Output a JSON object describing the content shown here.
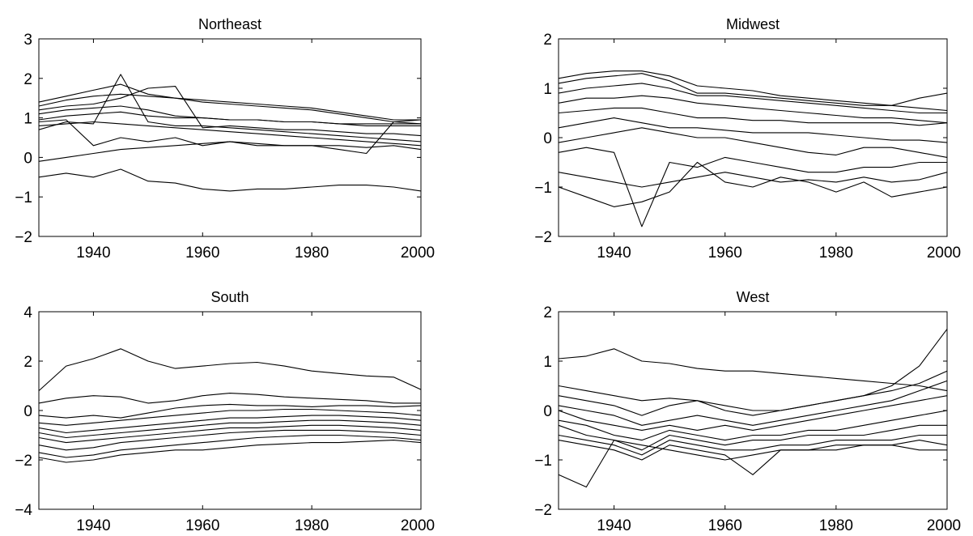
{
  "chart_data": [
    {
      "type": "line",
      "title": "Northeast",
      "xlim": [
        1930,
        2000
      ],
      "ylim": [
        -2,
        3
      ],
      "xticks": [
        1940,
        1960,
        1980,
        2000
      ],
      "yticks": [
        -2,
        -1,
        0,
        1,
        2,
        3
      ],
      "xtick_labels": [
        "1940",
        "1960",
        "1980",
        "2000"
      ],
      "ytick_labels": [
        "−2",
        "−1",
        "0",
        "1",
        "2",
        "3"
      ],
      "x": [
        1930,
        1935,
        1940,
        1945,
        1950,
        1955,
        1960,
        1965,
        1970,
        1975,
        1980,
        1985,
        1990,
        1995,
        2000
      ],
      "series": [
        {
          "values": [
            1.4,
            1.55,
            1.7,
            1.85,
            1.6,
            1.5,
            1.45,
            1.4,
            1.35,
            1.3,
            1.25,
            1.15,
            1.05,
            0.95,
            0.95
          ]
        },
        {
          "values": [
            1.3,
            1.45,
            1.55,
            1.6,
            1.55,
            1.5,
            1.4,
            1.35,
            1.3,
            1.25,
            1.2,
            1.1,
            1.0,
            0.9,
            0.85
          ]
        },
        {
          "values": [
            1.2,
            1.3,
            1.35,
            1.5,
            1.75,
            1.8,
            0.75,
            0.8,
            0.75,
            0.7,
            0.7,
            0.65,
            0.6,
            0.6,
            0.55
          ]
        },
        {
          "values": [
            1.1,
            1.2,
            1.25,
            1.3,
            1.2,
            1.05,
            1.0,
            0.95,
            0.95,
            0.9,
            0.9,
            0.85,
            0.85,
            0.85,
            0.85
          ]
        },
        {
          "values": [
            0.95,
            1.05,
            1.1,
            1.15,
            1.05,
            1.0,
            1.0,
            0.95,
            0.95,
            0.9,
            0.9,
            0.85,
            0.8,
            0.8,
            0.8
          ]
        },
        {
          "values": [
            0.7,
            0.9,
            0.85,
            2.1,
            0.9,
            0.8,
            0.8,
            0.75,
            0.7,
            0.65,
            0.6,
            0.55,
            0.5,
            0.45,
            0.4
          ]
        },
        {
          "values": [
            0.8,
            0.85,
            0.9,
            0.85,
            0.8,
            0.75,
            0.7,
            0.65,
            0.6,
            0.55,
            0.5,
            0.45,
            0.4,
            0.35,
            0.3
          ]
        },
        {
          "values": [
            0.9,
            0.95,
            0.3,
            0.5,
            0.4,
            0.5,
            0.3,
            0.4,
            0.3,
            0.3,
            0.3,
            0.2,
            0.1,
            0.9,
            0.95
          ]
        },
        {
          "values": [
            -0.1,
            0.0,
            0.1,
            0.2,
            0.25,
            0.3,
            0.35,
            0.4,
            0.35,
            0.3,
            0.3,
            0.3,
            0.25,
            0.3,
            0.2
          ]
        },
        {
          "values": [
            -0.5,
            -0.4,
            -0.5,
            -0.3,
            -0.6,
            -0.65,
            -0.8,
            -0.85,
            -0.8,
            -0.8,
            -0.75,
            -0.7,
            -0.7,
            -0.75,
            -0.85
          ]
        }
      ]
    },
    {
      "type": "line",
      "title": "Midwest",
      "xlim": [
        1930,
        2000
      ],
      "ylim": [
        -2,
        2
      ],
      "xticks": [
        1940,
        1960,
        1980,
        2000
      ],
      "yticks": [
        -2,
        -1,
        0,
        1,
        2
      ],
      "xtick_labels": [
        "1940",
        "1960",
        "1980",
        "2000"
      ],
      "ytick_labels": [
        "−2",
        "−1",
        "0",
        "1",
        "2"
      ],
      "x": [
        1930,
        1935,
        1940,
        1945,
        1950,
        1955,
        1960,
        1965,
        1970,
        1975,
        1980,
        1985,
        1990,
        1995,
        2000
      ],
      "series": [
        {
          "values": [
            1.2,
            1.3,
            1.35,
            1.35,
            1.25,
            1.05,
            1.0,
            0.95,
            0.85,
            0.8,
            0.75,
            0.7,
            0.65,
            0.6,
            0.55
          ]
        },
        {
          "values": [
            1.1,
            1.2,
            1.25,
            1.3,
            1.15,
            0.9,
            0.9,
            0.85,
            0.8,
            0.75,
            0.7,
            0.65,
            0.65,
            0.8,
            0.9
          ]
        },
        {
          "values": [
            0.9,
            1.0,
            1.05,
            1.1,
            1.0,
            0.85,
            0.85,
            0.8,
            0.75,
            0.7,
            0.65,
            0.6,
            0.55,
            0.5,
            0.5
          ]
        },
        {
          "values": [
            0.7,
            0.8,
            0.8,
            0.85,
            0.8,
            0.7,
            0.65,
            0.6,
            0.55,
            0.5,
            0.45,
            0.4,
            0.4,
            0.35,
            0.3
          ]
        },
        {
          "values": [
            0.5,
            0.55,
            0.6,
            0.6,
            0.5,
            0.4,
            0.4,
            0.35,
            0.35,
            0.3,
            0.3,
            0.3,
            0.3,
            0.25,
            0.3
          ]
        },
        {
          "values": [
            0.2,
            0.3,
            0.4,
            0.3,
            0.2,
            0.2,
            0.15,
            0.1,
            0.1,
            0.1,
            0.05,
            0.0,
            -0.05,
            -0.05,
            -0.1
          ]
        },
        {
          "values": [
            -0.1,
            0.0,
            0.1,
            0.2,
            0.1,
            0.0,
            0.0,
            -0.1,
            -0.2,
            -0.3,
            -0.35,
            -0.2,
            -0.2,
            -0.3,
            -0.4
          ]
        },
        {
          "values": [
            -0.3,
            -0.2,
            -0.3,
            -1.8,
            -0.5,
            -0.6,
            -0.4,
            -0.5,
            -0.6,
            -0.7,
            -0.7,
            -0.6,
            -0.6,
            -0.5,
            -0.5
          ]
        },
        {
          "values": [
            -0.7,
            -0.8,
            -0.9,
            -1.0,
            -0.9,
            -0.8,
            -0.7,
            -0.8,
            -0.9,
            -0.85,
            -0.9,
            -0.8,
            -0.9,
            -0.85,
            -0.7
          ]
        },
        {
          "values": [
            -1.0,
            -1.2,
            -1.4,
            -1.3,
            -1.1,
            -0.5,
            -0.9,
            -1.0,
            -0.8,
            -0.9,
            -1.1,
            -0.9,
            -1.2,
            -1.1,
            -1.0
          ]
        }
      ]
    },
    {
      "type": "line",
      "title": "South",
      "xlim": [
        1930,
        2000
      ],
      "ylim": [
        -4,
        4
      ],
      "xticks": [
        1940,
        1960,
        1980,
        2000
      ],
      "yticks": [
        -4,
        -2,
        0,
        2,
        4
      ],
      "xtick_labels": [
        "1940",
        "1960",
        "1980",
        "2000"
      ],
      "ytick_labels": [
        "−4",
        "−2",
        "0",
        "2",
        "4"
      ],
      "x": [
        1930,
        1935,
        1940,
        1945,
        1950,
        1955,
        1960,
        1965,
        1970,
        1975,
        1980,
        1985,
        1990,
        1995,
        2000
      ],
      "series": [
        {
          "values": [
            0.8,
            1.8,
            2.1,
            2.5,
            2.0,
            1.7,
            1.8,
            1.9,
            1.95,
            1.8,
            1.6,
            1.5,
            1.4,
            1.35,
            0.85
          ]
        },
        {
          "values": [
            0.3,
            0.5,
            0.6,
            0.55,
            0.3,
            0.4,
            0.6,
            0.7,
            0.65,
            0.55,
            0.5,
            0.45,
            0.4,
            0.3,
            0.3
          ]
        },
        {
          "values": [
            -0.2,
            -0.3,
            -0.2,
            -0.3,
            -0.1,
            0.1,
            0.2,
            0.25,
            0.2,
            0.2,
            0.15,
            0.2,
            0.2,
            0.15,
            0.2
          ]
        },
        {
          "values": [
            -0.5,
            -0.6,
            -0.5,
            -0.4,
            -0.3,
            -0.2,
            -0.1,
            0.0,
            0.0,
            0.05,
            0.05,
            0.0,
            -0.05,
            -0.1,
            -0.2
          ]
        },
        {
          "values": [
            -0.7,
            -0.9,
            -0.8,
            -0.7,
            -0.6,
            -0.5,
            -0.4,
            -0.3,
            -0.3,
            -0.25,
            -0.2,
            -0.2,
            -0.25,
            -0.3,
            -0.4
          ]
        },
        {
          "values": [
            -0.9,
            -1.1,
            -1.0,
            -0.9,
            -0.8,
            -0.7,
            -0.6,
            -0.5,
            -0.5,
            -0.45,
            -0.4,
            -0.4,
            -0.45,
            -0.5,
            -0.6
          ]
        },
        {
          "values": [
            -1.1,
            -1.3,
            -1.2,
            -1.1,
            -1.0,
            -0.9,
            -0.8,
            -0.7,
            -0.7,
            -0.65,
            -0.6,
            -0.6,
            -0.65,
            -0.7,
            -0.8
          ]
        },
        {
          "values": [
            -1.4,
            -1.6,
            -1.5,
            -1.3,
            -1.2,
            -1.1,
            -1.0,
            -0.9,
            -0.85,
            -0.8,
            -0.8,
            -0.8,
            -0.85,
            -0.9,
            -1.0
          ]
        },
        {
          "values": [
            -1.7,
            -1.9,
            -1.8,
            -1.6,
            -1.5,
            -1.4,
            -1.3,
            -1.2,
            -1.1,
            -1.05,
            -1.0,
            -1.0,
            -1.05,
            -1.1,
            -1.2
          ]
        },
        {
          "values": [
            -1.9,
            -2.1,
            -2.0,
            -1.8,
            -1.7,
            -1.6,
            -1.6,
            -1.5,
            -1.4,
            -1.35,
            -1.3,
            -1.3,
            -1.25,
            -1.2,
            -1.3
          ]
        }
      ]
    },
    {
      "type": "line",
      "title": "West",
      "xlim": [
        1930,
        2000
      ],
      "ylim": [
        -2,
        2
      ],
      "xticks": [
        1940,
        1960,
        1980,
        2000
      ],
      "yticks": [
        -2,
        -1,
        0,
        1,
        2
      ],
      "xtick_labels": [
        "1940",
        "1960",
        "1980",
        "2000"
      ],
      "ytick_labels": [
        "−2",
        "−1",
        "0",
        "1",
        "2"
      ],
      "x": [
        1930,
        1935,
        1940,
        1945,
        1950,
        1955,
        1960,
        1965,
        1970,
        1975,
        1980,
        1985,
        1990,
        1995,
        2000
      ],
      "series": [
        {
          "values": [
            1.05,
            1.1,
            1.25,
            1.0,
            0.95,
            0.85,
            0.8,
            0.8,
            0.75,
            0.7,
            0.65,
            0.6,
            0.55,
            0.5,
            0.4
          ]
        },
        {
          "values": [
            0.5,
            0.4,
            0.3,
            0.2,
            0.25,
            0.2,
            0.1,
            0.0,
            0.0,
            0.1,
            0.2,
            0.3,
            0.4,
            0.55,
            0.8
          ]
        },
        {
          "values": [
            0.3,
            0.2,
            0.1,
            -0.1,
            0.1,
            0.2,
            0.0,
            -0.1,
            0.0,
            0.1,
            0.2,
            0.3,
            0.5,
            0.9,
            1.65
          ]
        },
        {
          "values": [
            0.1,
            0.0,
            -0.1,
            -0.3,
            -0.2,
            -0.1,
            -0.2,
            -0.3,
            -0.2,
            -0.1,
            0.0,
            0.1,
            0.2,
            0.4,
            0.6
          ]
        },
        {
          "values": [
            0.0,
            -0.2,
            -0.3,
            -0.4,
            -0.3,
            -0.4,
            -0.3,
            -0.4,
            -0.3,
            -0.2,
            -0.1,
            0.0,
            0.1,
            0.2,
            0.3
          ]
        },
        {
          "values": [
            -0.2,
            -0.3,
            -0.5,
            -0.6,
            -0.4,
            -0.5,
            -0.6,
            -0.5,
            -0.5,
            -0.4,
            -0.4,
            -0.3,
            -0.2,
            -0.1,
            0.0
          ]
        },
        {
          "values": [
            -0.3,
            -0.5,
            -0.6,
            -0.8,
            -0.5,
            -0.6,
            -0.7,
            -0.6,
            -0.6,
            -0.5,
            -0.5,
            -0.5,
            -0.4,
            -0.3,
            -0.3
          ]
        },
        {
          "values": [
            -0.5,
            -0.6,
            -0.7,
            -0.9,
            -0.6,
            -0.7,
            -0.8,
            -0.8,
            -0.7,
            -0.7,
            -0.6,
            -0.6,
            -0.6,
            -0.5,
            -0.5
          ]
        },
        {
          "values": [
            -0.6,
            -0.7,
            -0.8,
            -1.0,
            -0.7,
            -0.8,
            -0.9,
            -1.3,
            -0.8,
            -0.8,
            -0.7,
            -0.7,
            -0.7,
            -0.6,
            -0.7
          ]
        },
        {
          "values": [
            -1.3,
            -1.55,
            -0.6,
            -0.7,
            -0.8,
            -0.9,
            -1.0,
            -0.9,
            -0.8,
            -0.8,
            -0.8,
            -0.7,
            -0.7,
            -0.8,
            -0.8
          ]
        }
      ]
    }
  ]
}
